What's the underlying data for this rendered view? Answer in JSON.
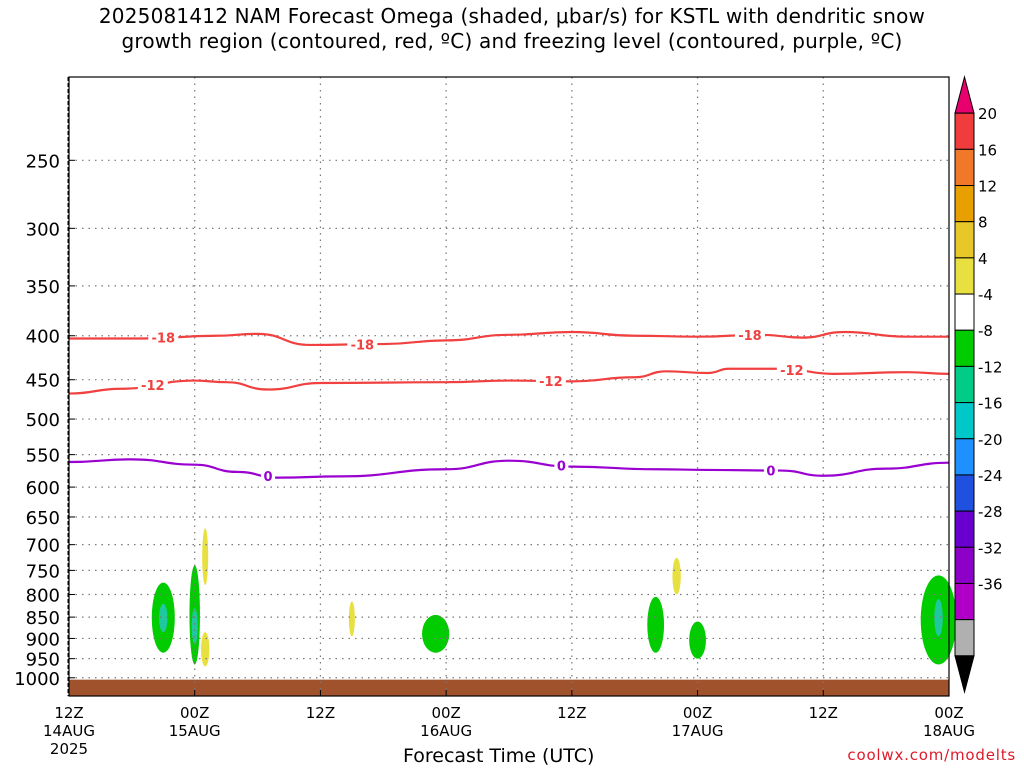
{
  "title": {
    "line1": "2025081412 NAM Forecast Omega (shaded, μbar/s) for KSTL with dendritic snow",
    "line2": "growth region (contoured, red, ºC) and freezing level (contoured, purple, ºC)"
  },
  "credit": "coolwx.com/modelts",
  "chart_data": {
    "type": "time-height cross-section",
    "station": "KSTL",
    "run": "2025081412",
    "model": "NAM",
    "xlabel": "Forecast Time (UTC)",
    "x_ticks": [
      {
        "time": "2025-08-14T12",
        "line1": "12Z",
        "line2": "14AUG",
        "line3": "2025"
      },
      {
        "time": "2025-08-15T00",
        "line1": "00Z",
        "line2": "15AUG",
        "line3": ""
      },
      {
        "time": "2025-08-15T12",
        "line1": "12Z",
        "line2": "",
        "line3": ""
      },
      {
        "time": "2025-08-16T00",
        "line1": "00Z",
        "line2": "16AUG",
        "line3": ""
      },
      {
        "time": "2025-08-16T12",
        "line1": "12Z",
        "line2": "",
        "line3": ""
      },
      {
        "time": "2025-08-17T00",
        "line1": "00Z",
        "line2": "17AUG",
        "line3": ""
      },
      {
        "time": "2025-08-17T12",
        "line1": "12Z",
        "line2": "",
        "line3": ""
      },
      {
        "time": "2025-08-18T00",
        "line1": "00Z",
        "line2": "18AUG",
        "line3": ""
      }
    ],
    "y_axis": {
      "quantity": "pressure",
      "scale": "log",
      "reversed": true,
      "range": [
        1050,
        200
      ],
      "ticks": [
        250,
        300,
        350,
        400,
        450,
        500,
        550,
        600,
        650,
        700,
        750,
        800,
        850,
        900,
        950,
        1000
      ]
    },
    "grid": true,
    "colorbar": {
      "labels": [
        "20",
        "16",
        "12",
        "8",
        "4",
        "-4",
        "-8",
        "-12",
        "-16",
        "-20",
        "-24",
        "-28",
        "-32",
        "-36"
      ],
      "colors": [
        "#e8006e",
        "#f03c3c",
        "#f07828",
        "#e8a000",
        "#e8c828",
        "#e8e040",
        "#ffffff",
        "#00cc00",
        "#00cc88",
        "#00c8c8",
        "#1e90ff",
        "#2050e0",
        "#6a00d0",
        "#8c00c8",
        "#b000c8",
        "#b0b0b0",
        "#000000"
      ]
    },
    "contours": [
      {
        "name": "dendritic-18",
        "label": "-18",
        "color": "#f04040",
        "points": [
          [
            "2025-08-14T12",
            403
          ],
          [
            "2025-08-14T19",
            403
          ],
          [
            "2025-08-15T02",
            400
          ],
          [
            "2025-08-15T06",
            398
          ],
          [
            "2025-08-15T11",
            410
          ],
          [
            "2025-08-15T18",
            409
          ],
          [
            "2025-08-16T00",
            405
          ],
          [
            "2025-08-16T06",
            399
          ],
          [
            "2025-08-16T12",
            396
          ],
          [
            "2025-08-16T18",
            400
          ],
          [
            "2025-08-17T00",
            401
          ],
          [
            "2025-08-17T06",
            399
          ],
          [
            "2025-08-17T10",
            402
          ],
          [
            "2025-08-17T14",
            396
          ],
          [
            "2025-08-17T20",
            401
          ],
          [
            "2025-08-18T00",
            401
          ]
        ],
        "label_times": [
          "2025-08-14T21",
          "2025-08-15T16",
          "2025-08-17T05"
        ]
      },
      {
        "name": "dendritic-12",
        "label": "-12",
        "color": "#f04040",
        "points": [
          [
            "2025-08-14T12",
            467
          ],
          [
            "2025-08-14T17",
            461
          ],
          [
            "2025-08-15T00",
            451
          ],
          [
            "2025-08-15T03",
            453
          ],
          [
            "2025-08-15T07",
            462
          ],
          [
            "2025-08-15T12",
            454
          ],
          [
            "2025-08-16T00",
            453
          ],
          [
            "2025-08-16T06",
            451
          ],
          [
            "2025-08-16T12",
            452
          ],
          [
            "2025-08-16T18",
            447
          ],
          [
            "2025-08-16T21",
            440
          ],
          [
            "2025-08-17T01",
            442
          ],
          [
            "2025-08-17T03",
            437
          ],
          [
            "2025-08-17T08",
            437
          ],
          [
            "2025-08-17T13",
            443
          ],
          [
            "2025-08-17T20",
            441
          ],
          [
            "2025-08-18T00",
            443
          ]
        ],
        "label_times": [
          "2025-08-14T20",
          "2025-08-16T10",
          "2025-08-17T09"
        ]
      },
      {
        "name": "freezing-level",
        "label": "0",
        "color": "#9a00d0",
        "points": [
          [
            "2025-08-14T12",
            561
          ],
          [
            "2025-08-14T18",
            557
          ],
          [
            "2025-08-15T00",
            565
          ],
          [
            "2025-08-15T04",
            576
          ],
          [
            "2025-08-15T08",
            585
          ],
          [
            "2025-08-15T14",
            583
          ],
          [
            "2025-08-16T00",
            572
          ],
          [
            "2025-08-16T06",
            559
          ],
          [
            "2025-08-16T12",
            568
          ],
          [
            "2025-08-16T20",
            572
          ],
          [
            "2025-08-17T01",
            573
          ],
          [
            "2025-08-17T08",
            574
          ],
          [
            "2025-08-17T12",
            582
          ],
          [
            "2025-08-17T18",
            571
          ],
          [
            "2025-08-18T00",
            562
          ]
        ],
        "label_times": [
          "2025-08-15T07",
          "2025-08-16T11",
          "2025-08-17T07"
        ]
      }
    ],
    "shaded_regions": [
      {
        "name": "ascent-blob-1",
        "omega": -8,
        "color": "#00cc00",
        "center": [
          "2025-08-14T21",
          868
        ],
        "half_width_hours": 1.1,
        "p_top": 775,
        "p_bottom": 935
      },
      {
        "name": "ascent-core-1",
        "omega": -12,
        "color": "#20c8a0",
        "center": [
          "2025-08-14T21",
          852
        ],
        "half_width_hours": 0.4,
        "p_top": 820,
        "p_bottom": 885
      },
      {
        "name": "ascent-blob-2",
        "omega": -8,
        "color": "#00cc00",
        "center": [
          "2025-08-15T00",
          862
        ],
        "half_width_hours": 0.5,
        "p_top": 740,
        "p_bottom": 965
      },
      {
        "name": "ascent-core-2",
        "omega": -12,
        "color": "#20c8a0",
        "center": [
          "2025-08-15T00",
          875
        ],
        "half_width_hours": 0.2,
        "p_top": 830,
        "p_bottom": 915
      },
      {
        "name": "subsidence-1",
        "omega": 4,
        "color": "#e8e040",
        "center": [
          "2025-08-15T01",
          720
        ],
        "half_width_hours": 0.15,
        "p_top": 670,
        "p_bottom": 780
      },
      {
        "name": "subsidence-2",
        "omega": 4,
        "color": "#e8e040",
        "center": [
          "2025-08-15T01",
          925
        ],
        "half_width_hours": 0.4,
        "p_top": 885,
        "p_bottom": 970
      },
      {
        "name": "subsidence-3",
        "omega": 4,
        "color": "#e8e040",
        "center": [
          "2025-08-15T15",
          858
        ],
        "half_width_hours": 0.25,
        "p_top": 815,
        "p_bottom": 895
      },
      {
        "name": "ascent-blob-3",
        "omega": -8,
        "color": "#00cc00",
        "center": [
          "2025-08-15T23",
          885
        ],
        "half_width_hours": 1.3,
        "p_top": 845,
        "p_bottom": 935
      },
      {
        "name": "subsidence-4",
        "omega": 4,
        "color": "#e8e040",
        "center": [
          "2025-08-16T22",
          765
        ],
        "half_width_hours": 0.4,
        "p_top": 725,
        "p_bottom": 800
      },
      {
        "name": "ascent-blob-4",
        "omega": -8,
        "color": "#00cc00",
        "center": [
          "2025-08-16T20",
          870
        ],
        "half_width_hours": 0.8,
        "p_top": 805,
        "p_bottom": 935
      },
      {
        "name": "ascent-blob-5",
        "omega": -8,
        "color": "#00cc00",
        "center": [
          "2025-08-17T00",
          895
        ],
        "half_width_hours": 0.8,
        "p_top": 860,
        "p_bottom": 950
      },
      {
        "name": "ascent-blob-6",
        "omega": -8,
        "color": "#00cc00",
        "center": [
          "2025-08-17T23",
          858
        ],
        "half_width_hours": 1.7,
        "p_top": 760,
        "p_bottom": 965
      },
      {
        "name": "ascent-core-6",
        "omega": -12,
        "color": "#20c8a0",
        "center": [
          "2025-08-17T23",
          850
        ],
        "half_width_hours": 0.4,
        "p_top": 810,
        "p_bottom": 895
      }
    ],
    "ground": {
      "color": "#a0522d",
      "p_top": 1005
    }
  }
}
